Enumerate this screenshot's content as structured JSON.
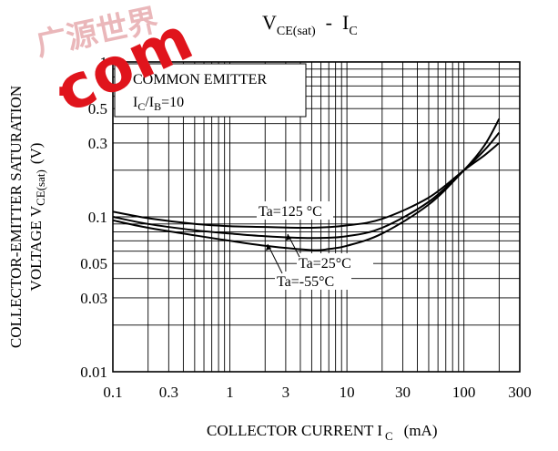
{
  "watermark": {
    "cn_text": "广源世界",
    "cn_color": "#e4a0a4",
    "com_text": "com",
    "com_color": "#e0141c",
    "dot_text": "."
  },
  "chart_data": {
    "type": "line",
    "title": {
      "main": "V",
      "main_sub": "CE(sat)",
      "sep": "  -  I",
      "sep_sub": "C"
    },
    "xlabel": {
      "main": "COLLECTOR CURRENT I",
      "sub": "C",
      "unit": "(mA)"
    },
    "ylabel": {
      "line1": "COLLECTOR-EMITTER SATURATION",
      "line2_main": "VOLTAGE V",
      "line2_sub": "CE(sat)",
      "line2_unit": "(V)"
    },
    "x_scale": "log",
    "y_scale": "log",
    "xlim": [
      0.1,
      300
    ],
    "ylim": [
      0.01,
      1
    ],
    "grid": true,
    "x_ticks": [
      {
        "value": 0.1,
        "label": "0.1"
      },
      {
        "value": 0.3,
        "label": "0.3"
      },
      {
        "value": 1,
        "label": "1"
      },
      {
        "value": 3,
        "label": "3"
      },
      {
        "value": 10,
        "label": "10"
      },
      {
        "value": 30,
        "label": "30"
      },
      {
        "value": 100,
        "label": "100"
      },
      {
        "value": 300,
        "label": "300"
      }
    ],
    "y_ticks": [
      {
        "value": 0.01,
        "label": "0.01"
      },
      {
        "value": 0.03,
        "label": "0.03"
      },
      {
        "value": 0.05,
        "label": "0.05"
      },
      {
        "value": 0.1,
        "label": "0.1"
      },
      {
        "value": 0.3,
        "label": "0.3"
      },
      {
        "value": 0.5,
        "label": "0.5"
      },
      {
        "value": 1,
        "label": "1"
      }
    ],
    "condition_box": {
      "line1": "COMMON EMITTER",
      "line2_a": "I",
      "line2_a_sub": "C",
      "line2_b": "/I",
      "line2_b_sub": "B",
      "line2_c": "=10"
    },
    "series": [
      {
        "name": "Ta=125°C",
        "label": "Ta=125 °C",
        "x": [
          0.1,
          0.2,
          0.5,
          1,
          2,
          5,
          10,
          20,
          50,
          100,
          150,
          200
        ],
        "y": [
          0.108,
          0.098,
          0.09,
          0.087,
          0.086,
          0.085,
          0.088,
          0.097,
          0.133,
          0.2,
          0.25,
          0.3
        ]
      },
      {
        "name": "Ta=25°C",
        "label": "Ta=25°C",
        "x": [
          0.1,
          0.2,
          0.5,
          1,
          2,
          5,
          10,
          20,
          50,
          100,
          150,
          200
        ],
        "y": [
          0.1,
          0.09,
          0.082,
          0.078,
          0.075,
          0.073,
          0.075,
          0.085,
          0.125,
          0.2,
          0.27,
          0.35
        ]
      },
      {
        "name": "Ta=-55°C",
        "label": "Ta=-55°C",
        "x": [
          0.1,
          0.2,
          0.5,
          1,
          2,
          5,
          7,
          10,
          20,
          50,
          100,
          150,
          200
        ],
        "y": [
          0.095,
          0.085,
          0.076,
          0.07,
          0.065,
          0.061,
          0.062,
          0.065,
          0.078,
          0.12,
          0.2,
          0.29,
          0.43
        ]
      }
    ]
  }
}
